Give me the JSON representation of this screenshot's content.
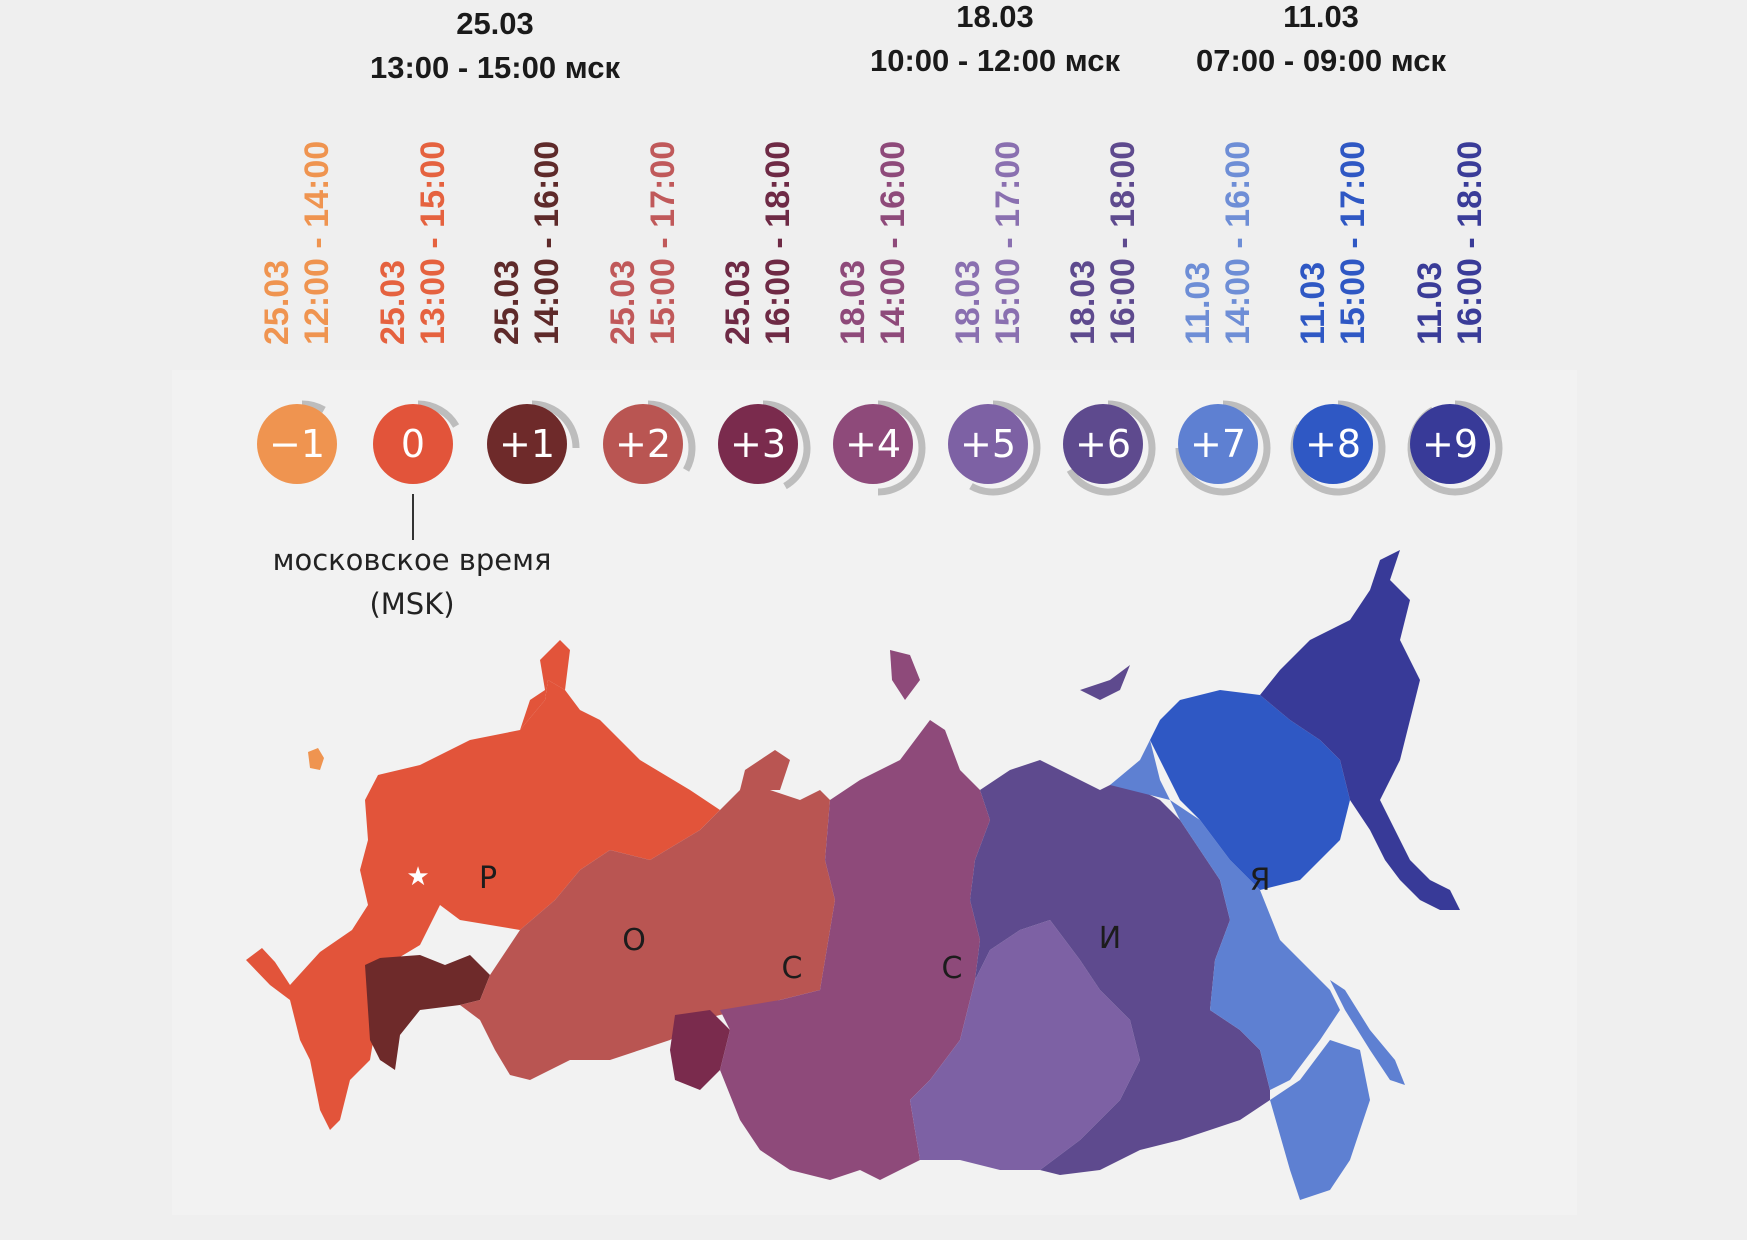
{
  "headers": [
    {
      "date": "25.03",
      "time": "13:00 - 15:00 мск"
    },
    {
      "date": "18.03",
      "time": "10:00 - 12:00 мск"
    },
    {
      "date": "11.03",
      "time": "07:00 - 09:00 мск"
    }
  ],
  "zones": [
    {
      "offset": "−1",
      "date": "25.03",
      "time": "12:00 - 14:00",
      "color": "#ef9450"
    },
    {
      "offset": "0",
      "date": "25.03",
      "time": "13:00 - 15:00",
      "color": "#e2543a"
    },
    {
      "offset": "+1",
      "date": "25.03",
      "time": "14:00 - 16:00",
      "color": "#6e2a2a"
    },
    {
      "offset": "+2",
      "date": "25.03",
      "time": "15:00 - 17:00",
      "color": "#b95552"
    },
    {
      "offset": "+3",
      "date": "25.03",
      "time": "16:00 - 18:00",
      "color": "#7a2b4d"
    },
    {
      "offset": "+4",
      "date": "18.03",
      "time": "14:00 - 16:00",
      "color": "#8e4a7a"
    },
    {
      "offset": "+5",
      "date": "18.03",
      "time": "15:00 - 17:00",
      "color": "#7d61a4"
    },
    {
      "offset": "+6",
      "date": "18.03",
      "time": "16:00 - 18:00",
      "color": "#5e4a8e"
    },
    {
      "offset": "+7",
      "date": "11.03",
      "time": "14:00 - 16:00",
      "color": "#5e80d2"
    },
    {
      "offset": "+8",
      "date": "11.03",
      "time": "15:00 - 17:00",
      "color": "#2f58c4"
    },
    {
      "offset": "+9",
      "date": "11.03",
      "time": "16:00 - 18:00",
      "color": "#383a98"
    }
  ],
  "label_colors": [
    "#ef9450",
    "#e5623f",
    "#5e2a2a",
    "#c0595a",
    "#6e2a45",
    "#8e4a7a",
    "#8a70b0",
    "#5e4a8e",
    "#6e8ed6",
    "#2f58c4",
    "#3a3c98"
  ],
  "msk_note": {
    "line1": "московское время",
    "line2": "(MSK)"
  },
  "country_letters": [
    "Р",
    "О",
    "С",
    "С",
    "И",
    "Я"
  ]
}
